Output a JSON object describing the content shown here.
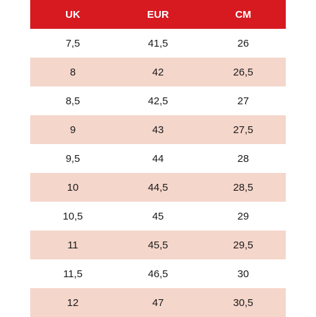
{
  "colors": {
    "header_bg": "#d71920",
    "header_text": "#ffffff",
    "row_shaded": "#f5d6cb",
    "row_plain": "#ffffff"
  },
  "table": {
    "headers": [
      "UK",
      "EUR",
      "CM"
    ],
    "rows": [
      [
        "7,5",
        "41,5",
        "26"
      ],
      [
        "8",
        "42",
        "26,5"
      ],
      [
        "8,5",
        "42,5",
        "27"
      ],
      [
        "9",
        "43",
        "27,5"
      ],
      [
        "9,5",
        "44",
        "28"
      ],
      [
        "10",
        "44,5",
        "28,5"
      ],
      [
        "10,5",
        "45",
        "29"
      ],
      [
        "11",
        "45,5",
        "29,5"
      ],
      [
        "11,5",
        "46,5",
        "30"
      ],
      [
        "12",
        "47",
        "30,5"
      ]
    ]
  }
}
